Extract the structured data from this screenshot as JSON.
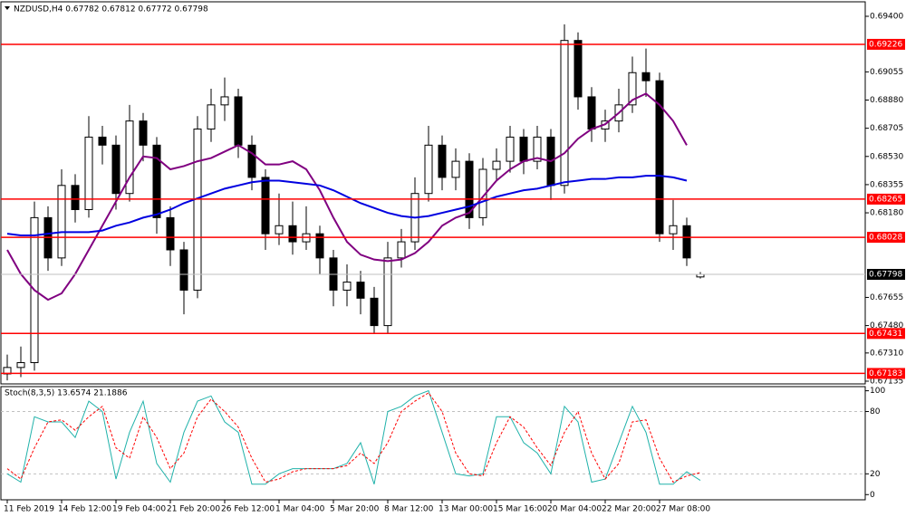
{
  "chart_data": [
    {
      "type": "candlestick",
      "title": "NZDUSD,H4  0.67782 0.67812 0.67772 0.67798",
      "categories": [
        "11 Feb 2019",
        null,
        null,
        null,
        "14 Feb 12:00",
        null,
        null,
        null,
        "19 Feb 04:00",
        null,
        null,
        null,
        "21 Feb 20:00",
        null,
        null,
        null,
        "26 Feb 12:00",
        null,
        null,
        null,
        "1 Mar 04:00",
        null,
        null,
        null,
        "5 Mar 20:00",
        null,
        null,
        null,
        "8 Mar 12:00",
        null,
        null,
        null,
        "13 Mar 00:00",
        null,
        null,
        null,
        "15 Mar 16:00",
        null,
        null,
        null,
        "20 Mar 04:00",
        null,
        null,
        null,
        "22 Mar 20:00",
        null,
        null,
        null,
        "27 Mar 08:00",
        null,
        null,
        null
      ],
      "open": [
        0.6718,
        0.6722,
        0.6725,
        0.6815,
        0.679,
        0.6835,
        0.682,
        0.6865,
        0.686,
        0.683,
        0.6875,
        0.686,
        0.6815,
        0.6795,
        0.677,
        0.687,
        0.6885,
        0.689,
        0.686,
        0.684,
        0.6805,
        0.681,
        0.68,
        0.6805,
        0.679,
        0.677,
        0.6775,
        0.6765,
        0.6748,
        0.679,
        0.68,
        0.683,
        0.686,
        0.684,
        0.685,
        0.6815,
        0.6845,
        0.685,
        0.6865,
        0.685,
        0.6865,
        0.6835,
        0.6925,
        0.689,
        0.687,
        0.6875,
        0.6885,
        0.6905,
        0.69,
        0.6805,
        0.681,
        0.67782
      ],
      "high": [
        0.673,
        0.6735,
        0.6825,
        0.6822,
        0.6845,
        0.6842,
        0.6878,
        0.6872,
        0.6866,
        0.6885,
        0.688,
        0.6865,
        0.6822,
        0.68,
        0.6878,
        0.6895,
        0.6902,
        0.6895,
        0.6866,
        0.6845,
        0.683,
        0.6825,
        0.6822,
        0.681,
        0.6795,
        0.6786,
        0.6782,
        0.6772,
        0.68,
        0.6808,
        0.684,
        0.6872,
        0.6866,
        0.6858,
        0.6855,
        0.6852,
        0.6858,
        0.6872,
        0.687,
        0.6872,
        0.687,
        0.6935,
        0.693,
        0.6896,
        0.6882,
        0.6895,
        0.6915,
        0.692,
        0.6905,
        0.6826,
        0.6815,
        0.67812
      ],
      "low": [
        0.6714,
        0.6716,
        0.672,
        0.6782,
        0.6785,
        0.6812,
        0.6815,
        0.6848,
        0.682,
        0.6825,
        0.685,
        0.6805,
        0.6785,
        0.6755,
        0.6765,
        0.6862,
        0.6875,
        0.6852,
        0.6832,
        0.6795,
        0.6798,
        0.6792,
        0.6795,
        0.678,
        0.676,
        0.676,
        0.6755,
        0.6743,
        0.6743,
        0.6784,
        0.6795,
        0.6825,
        0.6832,
        0.6832,
        0.6808,
        0.681,
        0.6838,
        0.6843,
        0.6842,
        0.6845,
        0.6826,
        0.683,
        0.6882,
        0.6862,
        0.6862,
        0.6868,
        0.688,
        0.689,
        0.68,
        0.6795,
        0.6785,
        0.67772
      ],
      "close": [
        0.6722,
        0.6725,
        0.6815,
        0.679,
        0.6835,
        0.682,
        0.6865,
        0.686,
        0.683,
        0.6875,
        0.686,
        0.6815,
        0.6795,
        0.677,
        0.687,
        0.6885,
        0.689,
        0.686,
        0.684,
        0.6805,
        0.681,
        0.68,
        0.6805,
        0.679,
        0.677,
        0.6775,
        0.6765,
        0.6748,
        0.679,
        0.68,
        0.683,
        0.686,
        0.684,
        0.685,
        0.6815,
        0.6845,
        0.685,
        0.6865,
        0.685,
        0.6865,
        0.6835,
        0.6925,
        0.689,
        0.687,
        0.6875,
        0.6885,
        0.6905,
        0.69,
        0.6805,
        0.681,
        0.679,
        0.67798
      ],
      "series": [
        {
          "color": "#800080",
          "values": [
            0.6795,
            0.678,
            0.677,
            0.6764,
            0.6768,
            0.678,
            0.6795,
            0.681,
            0.6825,
            0.684,
            0.6853,
            0.6852,
            0.6845,
            0.6847,
            0.685,
            0.6852,
            0.6856,
            0.686,
            0.6855,
            0.6848,
            0.6848,
            0.685,
            0.6845,
            0.6832,
            0.6815,
            0.68,
            0.6792,
            0.6789,
            0.6788,
            0.6789,
            0.6793,
            0.68,
            0.681,
            0.6815,
            0.6818,
            0.6828,
            0.6838,
            0.6845,
            0.685,
            0.6852,
            0.685,
            0.6855,
            0.6864,
            0.687,
            0.6873,
            0.688,
            0.6888,
            0.6892,
            0.6885,
            0.6875,
            0.686,
            null
          ]
        },
        {
          "color": "#0000e0",
          "values": [
            0.6805,
            0.6804,
            0.6804,
            0.6805,
            0.6806,
            0.6806,
            0.6806,
            0.6807,
            0.681,
            0.6812,
            0.6815,
            0.6817,
            0.682,
            0.6824,
            0.6827,
            0.683,
            0.6833,
            0.6835,
            0.6837,
            0.6838,
            0.6838,
            0.6837,
            0.6836,
            0.6835,
            0.6832,
            0.6828,
            0.6824,
            0.6821,
            0.6818,
            0.6816,
            0.6815,
            0.6816,
            0.6818,
            0.682,
            0.6822,
            0.6825,
            0.6828,
            0.683,
            0.6832,
            0.6833,
            0.6835,
            0.6837,
            0.6838,
            0.6839,
            0.6839,
            0.684,
            0.684,
            0.6841,
            0.6841,
            0.684,
            0.6838,
            null
          ]
        }
      ],
      "ylim": [
        0.67118,
        0.69473
      ],
      "yticks": [
        {
          "value": 0.694,
          "label": "0.69400"
        },
        {
          "value": 0.69055,
          "label": "0.69055"
        },
        {
          "value": 0.6888,
          "label": "0.68880"
        },
        {
          "value": 0.68705,
          "label": "0.68705"
        },
        {
          "value": 0.6853,
          "label": "0.68530"
        },
        {
          "value": 0.68355,
          "label": "0.68355"
        },
        {
          "value": 0.6818,
          "label": "0.68180"
        },
        {
          "value": 0.67655,
          "label": "0.67655"
        },
        {
          "value": 0.6748,
          "label": "0.67480"
        },
        {
          "value": 0.6731,
          "label": "0.67310"
        },
        {
          "value": 0.67135,
          "label": "0.67135"
        }
      ],
      "levels": [
        {
          "value": 0.69226,
          "label": "0.69226"
        },
        {
          "value": 0.68265,
          "label": "0.68265"
        },
        {
          "value": 0.68028,
          "label": "0.68028"
        },
        {
          "value": 0.67431,
          "label": "0.67431"
        },
        {
          "value": 0.67183,
          "label": "0.67183"
        }
      ],
      "level_color": "#ff0000",
      "current": {
        "value": 0.67798,
        "label": "0.67798"
      }
    },
    {
      "type": "line",
      "title": "Stoch(8,3,5) 13.6574 21.1886",
      "series": [
        {
          "color": "#20b2aa",
          "values": [
            20,
            12,
            75,
            70,
            70,
            55,
            90,
            80,
            15,
            60,
            90,
            30,
            12,
            60,
            90,
            95,
            70,
            60,
            10,
            10,
            20,
            25,
            25,
            25,
            25,
            30,
            50,
            10,
            80,
            85,
            95,
            100,
            60,
            20,
            18,
            20,
            75,
            75,
            50,
            40,
            20,
            85,
            70,
            12,
            15,
            50,
            85,
            60,
            10,
            10,
            22,
            13.6574
          ]
        },
        {
          "color": "#ff0000",
          "dash": true,
          "values": [
            25,
            15,
            45,
            70,
            72,
            62,
            75,
            85,
            45,
            35,
            75,
            55,
            25,
            40,
            75,
            92,
            80,
            65,
            35,
            12,
            15,
            22,
            25,
            25,
            25,
            28,
            40,
            30,
            50,
            80,
            90,
            98,
            80,
            40,
            20,
            18,
            50,
            75,
            65,
            45,
            28,
            60,
            80,
            40,
            15,
            30,
            70,
            72,
            35,
            12,
            18,
            21.1886
          ]
        }
      ],
      "ylim": [
        -5,
        104
      ],
      "yticks": [
        100,
        80,
        20,
        0
      ],
      "levels": [
        80,
        20
      ]
    }
  ]
}
